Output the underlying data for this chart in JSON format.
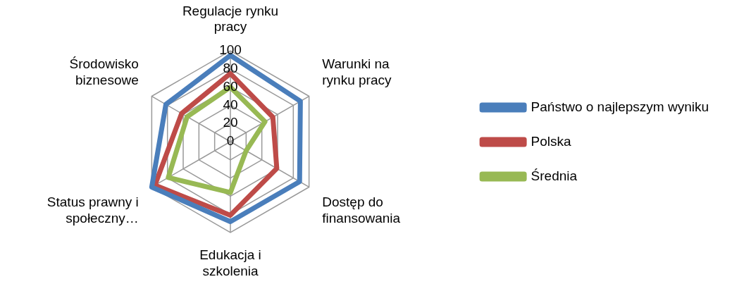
{
  "chart_data": {
    "type": "radar",
    "categories": [
      "Regulacje rynku pracy",
      "Warunki na rynku pracy",
      "Dostęp do finansowania",
      "Edukacja i szkolenia",
      "Status prawny i społeczny…",
      "Środowisko biznesowe"
    ],
    "series": [
      {
        "name": "Państwo o najlepszym wyniku",
        "color": "#4a7ebb",
        "values": [
          95,
          89,
          88,
          88,
          100,
          82
        ]
      },
      {
        "name": "Polska",
        "color": "#be4b48",
        "values": [
          75,
          54,
          59,
          81,
          96,
          62
        ]
      },
      {
        "name": "Średnia",
        "color": "#98b954",
        "values": [
          60,
          44,
          20,
          56,
          79,
          55
        ]
      }
    ],
    "ylim": [
      0,
      100
    ],
    "yticks": [
      0,
      20,
      40,
      60,
      80,
      100
    ],
    "legend": "right",
    "grid": true
  }
}
